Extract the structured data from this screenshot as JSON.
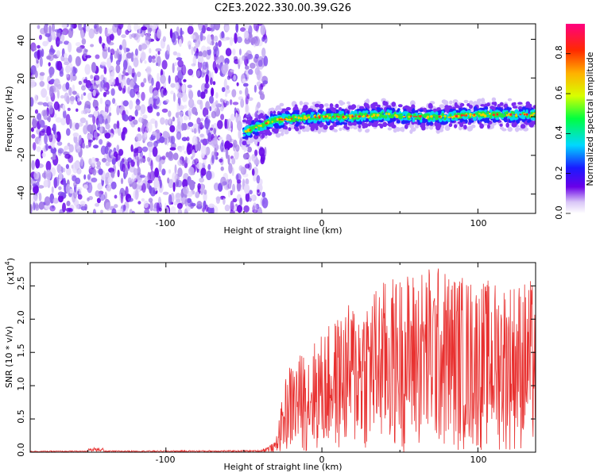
{
  "title": "C2E3.2022.330.00.39.G26",
  "chart_data": [
    {
      "type": "heatmap",
      "xlabel": "Height of straight line (km)",
      "ylabel": "Frequency (Hz)",
      "xlim": [
        -187,
        137
      ],
      "ylim": [
        -50,
        48
      ],
      "xticks": [
        -100,
        0,
        100
      ],
      "yticks": [
        -40,
        -20,
        0,
        20,
        40
      ],
      "noise_region_x": [
        -187,
        -44
      ],
      "signal_track": [
        {
          "x": -50,
          "y": -8
        },
        {
          "x": -40,
          "y": -5
        },
        {
          "x": -30,
          "y": -2
        },
        {
          "x": -20,
          "y": -1
        },
        {
          "x": 0,
          "y": 0
        },
        {
          "x": 20,
          "y": 0
        },
        {
          "x": 40,
          "y": 1
        },
        {
          "x": 60,
          "y": 0
        },
        {
          "x": 80,
          "y": 0
        },
        {
          "x": 100,
          "y": 1
        },
        {
          "x": 120,
          "y": 1
        },
        {
          "x": 137,
          "y": 1
        }
      ],
      "colorbar": {
        "label": "Normalized spectral amplitude",
        "range": [
          0.0,
          0.95
        ],
        "ticks": [
          "0.0",
          "0.2",
          "0.4",
          "0.6",
          "0.8"
        ]
      }
    },
    {
      "type": "line",
      "xlabel": "Height of straight line (km)",
      "ylabel": "SNR (10 * v/v)",
      "scale_label": "(x10",
      "scale_exp": "4",
      "scale_close": ")",
      "xlim": [
        -187,
        137
      ],
      "ylim": [
        0,
        2.85
      ],
      "xticks": [
        -100,
        0,
        100
      ],
      "yticks": [
        "0.0",
        "0.5",
        "1.0",
        "1.5",
        "2.0",
        "2.5"
      ],
      "color": "#e8302f",
      "envelope": [
        {
          "x": -187,
          "y": 0.02
        },
        {
          "x": -40,
          "y": 0.03
        },
        {
          "x": -30,
          "y": 0.15
        },
        {
          "x": -22,
          "y": 1.3
        },
        {
          "x": 0,
          "y": 1.8
        },
        {
          "x": 20,
          "y": 2.3
        },
        {
          "x": 40,
          "y": 2.6
        },
        {
          "x": 70,
          "y": 2.85
        },
        {
          "x": 100,
          "y": 2.6
        },
        {
          "x": 137,
          "y": 2.6
        }
      ]
    }
  ],
  "texts": {
    "x_tick_labels": [
      "-100",
      "0",
      "100"
    ],
    "top_y_tick_labels": [
      "-40",
      "-20",
      "0",
      "20",
      "40"
    ],
    "bottom_y_tick_labels": [
      "0.0",
      "0.5",
      "1.0",
      "1.5",
      "2.0",
      "2.5"
    ],
    "colorbar_tick_labels": [
      "0.0",
      "0.2",
      "0.4",
      "0.6",
      "0.8"
    ]
  }
}
